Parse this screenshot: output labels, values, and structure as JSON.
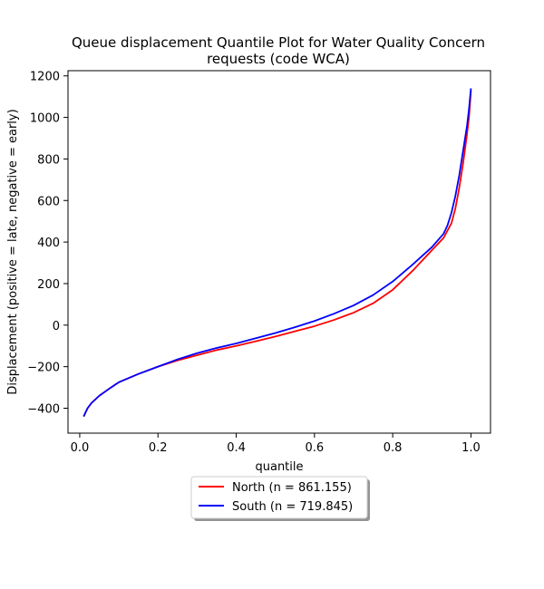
{
  "chart_data": {
    "type": "line",
    "title_line1": "Queue displacement Quantile Plot for Water Quality Concern",
    "title_line2": "requests (code WCA)",
    "xlabel": "quantile",
    "ylabel": "Displacement (positive = late, negative = early)",
    "xlim": [
      -0.03,
      1.05
    ],
    "ylim": [
      -520,
      1225
    ],
    "xticks": [
      0.0,
      0.2,
      0.4,
      0.6,
      0.8,
      1.0
    ],
    "xtick_labels": [
      "0.0",
      "0.2",
      "0.4",
      "0.6",
      "0.8",
      "1.0"
    ],
    "yticks": [
      -400,
      -200,
      0,
      200,
      400,
      600,
      800,
      1000,
      1200
    ],
    "ytick_labels": [
      "−400",
      "−200",
      "0",
      "200",
      "400",
      "600",
      "800",
      "1000",
      "1200"
    ],
    "grid": false,
    "legend_placement": "below plot, center",
    "series": [
      {
        "name": "North (n = 861.155)",
        "color": "#ff0000",
        "x": [
          0.01,
          0.02,
          0.03,
          0.05,
          0.08,
          0.1,
          0.15,
          0.2,
          0.25,
          0.3,
          0.35,
          0.4,
          0.45,
          0.5,
          0.55,
          0.6,
          0.65,
          0.7,
          0.75,
          0.8,
          0.85,
          0.9,
          0.93,
          0.95,
          0.96,
          0.97,
          0.98,
          0.99,
          0.995,
          1.0
        ],
        "y": [
          -440,
          -400,
          -375,
          -340,
          -300,
          -275,
          -235,
          -200,
          -170,
          -145,
          -120,
          -100,
          -78,
          -55,
          -30,
          -5,
          25,
          60,
          105,
          170,
          260,
          360,
          420,
          490,
          560,
          660,
          780,
          920,
          1000,
          1130
        ]
      },
      {
        "name": "South (n = 719.845)",
        "color": "#0000ff",
        "x": [
          0.01,
          0.02,
          0.03,
          0.05,
          0.08,
          0.1,
          0.15,
          0.2,
          0.25,
          0.3,
          0.35,
          0.4,
          0.45,
          0.5,
          0.55,
          0.6,
          0.65,
          0.7,
          0.75,
          0.8,
          0.85,
          0.9,
          0.93,
          0.94,
          0.95,
          0.96,
          0.97,
          0.98,
          0.99,
          0.995,
          1.0
        ],
        "y": [
          -440,
          -400,
          -375,
          -340,
          -300,
          -275,
          -235,
          -200,
          -165,
          -135,
          -110,
          -88,
          -63,
          -38,
          -10,
          20,
          55,
          95,
          145,
          210,
          290,
          375,
          440,
          480,
          540,
          620,
          720,
          840,
          960,
          1040,
          1140
        ]
      }
    ]
  }
}
